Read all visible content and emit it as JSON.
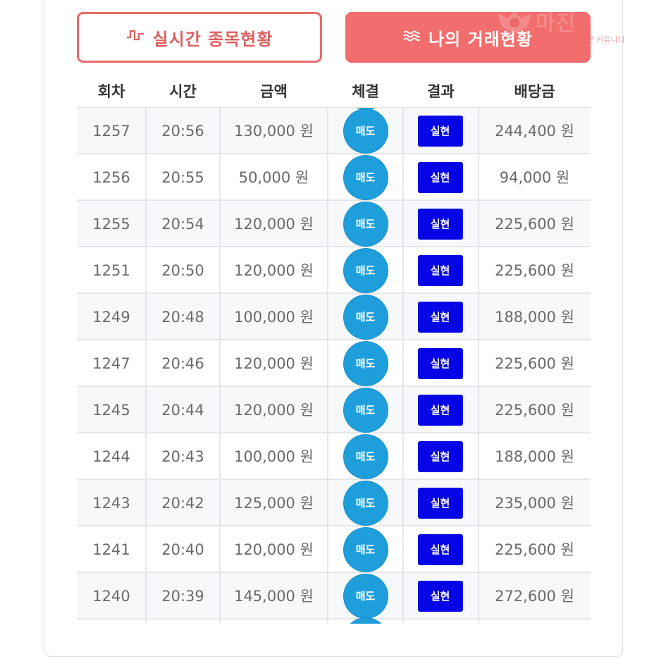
{
  "tabs": {
    "realtime": {
      "icon": "pulse-icon",
      "label": "실시간 종목현황"
    },
    "mytrades": {
      "icon": "wave-lines-icon",
      "label": "나의 거래현황"
    }
  },
  "watermark": {
    "title": "마진",
    "subtitle": "마진거래 검증전문 커뮤니티"
  },
  "table": {
    "headers": [
      "회차",
      "시간",
      "금액",
      "체결",
      "결과",
      "배당금"
    ],
    "rows": [
      {
        "round": "1257",
        "time": "20:56",
        "amount": "130,000 원",
        "exec": "매도",
        "result": "실현",
        "payout": "244,400 원"
      },
      {
        "round": "1256",
        "time": "20:55",
        "amount": "50,000 원",
        "exec": "매도",
        "result": "실현",
        "payout": "94,000 원"
      },
      {
        "round": "1255",
        "time": "20:54",
        "amount": "120,000 원",
        "exec": "매도",
        "result": "실현",
        "payout": "225,600 원"
      },
      {
        "round": "1251",
        "time": "20:50",
        "amount": "120,000 원",
        "exec": "매도",
        "result": "실현",
        "payout": "225,600 원"
      },
      {
        "round": "1249",
        "time": "20:48",
        "amount": "100,000 원",
        "exec": "매도",
        "result": "실현",
        "payout": "188,000 원"
      },
      {
        "round": "1247",
        "time": "20:46",
        "amount": "120,000 원",
        "exec": "매도",
        "result": "실현",
        "payout": "225,600 원"
      },
      {
        "round": "1245",
        "time": "20:44",
        "amount": "120,000 원",
        "exec": "매도",
        "result": "실현",
        "payout": "225,600 원"
      },
      {
        "round": "1244",
        "time": "20:43",
        "amount": "100,000 원",
        "exec": "매도",
        "result": "실현",
        "payout": "188,000 원"
      },
      {
        "round": "1243",
        "time": "20:42",
        "amount": "125,000 원",
        "exec": "매도",
        "result": "실현",
        "payout": "235,000 원"
      },
      {
        "round": "1241",
        "time": "20:40",
        "amount": "120,000 원",
        "exec": "매도",
        "result": "실현",
        "payout": "225,600 원"
      },
      {
        "round": "1240",
        "time": "20:39",
        "amount": "145,000 원",
        "exec": "매도",
        "result": "실현",
        "payout": "272,600 원"
      }
    ]
  },
  "colors": {
    "accent": "#f26d6d",
    "exec_circle": "#1e9fdc",
    "result_badge": "#0505e6"
  }
}
